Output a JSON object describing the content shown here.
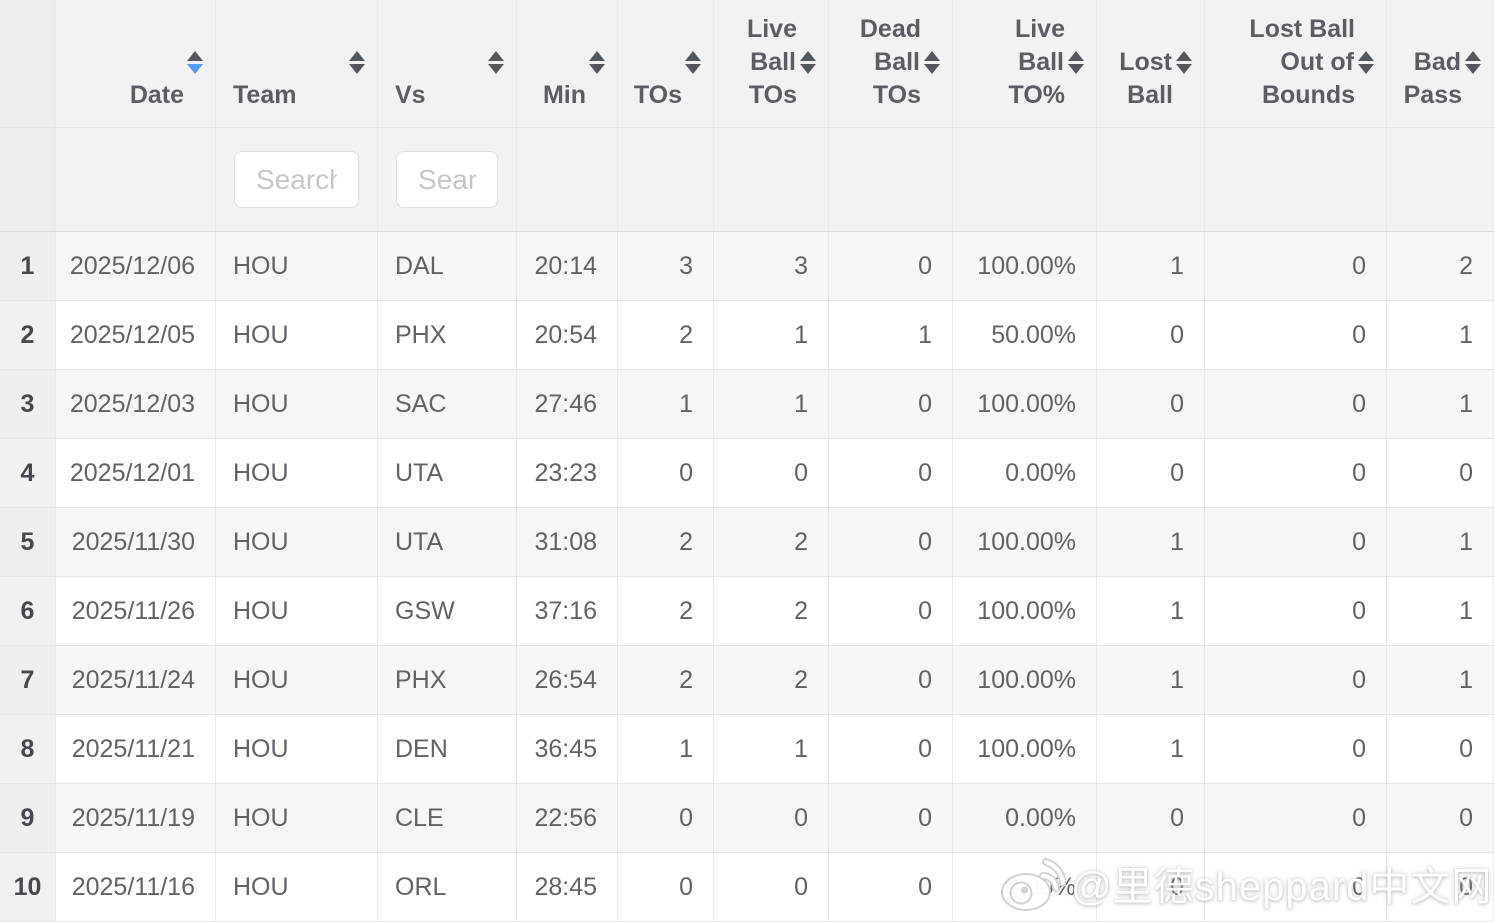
{
  "colors": {
    "sort_inactive": "#53575e",
    "sort_active": "#579af0",
    "header_text": "#5a5e64",
    "cell_text": "#5f6368",
    "row_number_text": "#45494f"
  },
  "table": {
    "columns": [
      {
        "key": "index",
        "label": "",
        "type": "row-number"
      },
      {
        "key": "date",
        "lines": [
          "Date"
        ],
        "align": "right",
        "sortable": true,
        "sorted": "desc"
      },
      {
        "key": "team",
        "lines": [
          "Team"
        ],
        "align": "left",
        "sortable": true,
        "filter_placeholder": "Search"
      },
      {
        "key": "vs",
        "lines": [
          "Vs"
        ],
        "align": "left",
        "sortable": true,
        "filter_placeholder": "Search"
      },
      {
        "key": "min",
        "lines": [
          "Min"
        ],
        "align": "right",
        "sortable": true
      },
      {
        "key": "tos",
        "lines": [
          "TOs"
        ],
        "align": "right",
        "sortable": true
      },
      {
        "key": "live_ball_tos",
        "lines": [
          "Live",
          "Ball",
          "TOs"
        ],
        "icon_line": 1,
        "align": "right",
        "sortable": true
      },
      {
        "key": "dead_ball_tos",
        "lines": [
          "Dead",
          "Ball",
          "TOs"
        ],
        "icon_line": 1,
        "align": "right",
        "sortable": true
      },
      {
        "key": "live_ball_to_pct",
        "lines": [
          "Live",
          "Ball",
          "TO%"
        ],
        "icon_line": 1,
        "align": "right",
        "sortable": true
      },
      {
        "key": "lost_ball",
        "lines": [
          "Lost",
          "Ball"
        ],
        "icon_line": 0,
        "align": "right",
        "sortable": true
      },
      {
        "key": "lost_ball_out_of_bounds",
        "lines": [
          "Lost Ball",
          "Out of",
          "Bounds"
        ],
        "icon_line": 1,
        "align": "right",
        "sortable": true
      },
      {
        "key": "bad_pass",
        "lines": [
          "Bad",
          "Pass"
        ],
        "icon_line": 0,
        "align": "right",
        "sortable": true
      }
    ],
    "rows": [
      {
        "index": "1",
        "date": "2025/12/06",
        "team": "HOU",
        "vs": "DAL",
        "min": "20:14",
        "tos": "3",
        "live_ball_tos": "3",
        "dead_ball_tos": "0",
        "live_ball_to_pct": "100.00%",
        "lost_ball": "1",
        "lost_ball_out_of_bounds": "0",
        "bad_pass": "2"
      },
      {
        "index": "2",
        "date": "2025/12/05",
        "team": "HOU",
        "vs": "PHX",
        "min": "20:54",
        "tos": "2",
        "live_ball_tos": "1",
        "dead_ball_tos": "1",
        "live_ball_to_pct": "50.00%",
        "lost_ball": "0",
        "lost_ball_out_of_bounds": "0",
        "bad_pass": "1"
      },
      {
        "index": "3",
        "date": "2025/12/03",
        "team": "HOU",
        "vs": "SAC",
        "min": "27:46",
        "tos": "1",
        "live_ball_tos": "1",
        "dead_ball_tos": "0",
        "live_ball_to_pct": "100.00%",
        "lost_ball": "0",
        "lost_ball_out_of_bounds": "0",
        "bad_pass": "1"
      },
      {
        "index": "4",
        "date": "2025/12/01",
        "team": "HOU",
        "vs": "UTA",
        "min": "23:23",
        "tos": "0",
        "live_ball_tos": "0",
        "dead_ball_tos": "0",
        "live_ball_to_pct": "0.00%",
        "lost_ball": "0",
        "lost_ball_out_of_bounds": "0",
        "bad_pass": "0"
      },
      {
        "index": "5",
        "date": "2025/11/30",
        "team": "HOU",
        "vs": "UTA",
        "min": "31:08",
        "tos": "2",
        "live_ball_tos": "2",
        "dead_ball_tos": "0",
        "live_ball_to_pct": "100.00%",
        "lost_ball": "1",
        "lost_ball_out_of_bounds": "0",
        "bad_pass": "1"
      },
      {
        "index": "6",
        "date": "2025/11/26",
        "team": "HOU",
        "vs": "GSW",
        "min": "37:16",
        "tos": "2",
        "live_ball_tos": "2",
        "dead_ball_tos": "0",
        "live_ball_to_pct": "100.00%",
        "lost_ball": "1",
        "lost_ball_out_of_bounds": "0",
        "bad_pass": "1"
      },
      {
        "index": "7",
        "date": "2025/11/24",
        "team": "HOU",
        "vs": "PHX",
        "min": "26:54",
        "tos": "2",
        "live_ball_tos": "2",
        "dead_ball_tos": "0",
        "live_ball_to_pct": "100.00%",
        "lost_ball": "1",
        "lost_ball_out_of_bounds": "0",
        "bad_pass": "1"
      },
      {
        "index": "8",
        "date": "2025/11/21",
        "team": "HOU",
        "vs": "DEN",
        "min": "36:45",
        "tos": "1",
        "live_ball_tos": "1",
        "dead_ball_tos": "0",
        "live_ball_to_pct": "100.00%",
        "lost_ball": "1",
        "lost_ball_out_of_bounds": "0",
        "bad_pass": "0"
      },
      {
        "index": "9",
        "date": "2025/11/19",
        "team": "HOU",
        "vs": "CLE",
        "min": "22:56",
        "tos": "0",
        "live_ball_tos": "0",
        "dead_ball_tos": "0",
        "live_ball_to_pct": "0.00%",
        "lost_ball": "0",
        "lost_ball_out_of_bounds": "0",
        "bad_pass": "0"
      },
      {
        "index": "10",
        "date": "2025/11/16",
        "team": "HOU",
        "vs": "ORL",
        "min": "28:45",
        "tos": "0",
        "live_ball_tos": "0",
        "dead_ball_tos": "0",
        "live_ball_to_pct": "0.00%",
        "lost_ball": "0",
        "lost_ball_out_of_bounds": "0",
        "bad_pass": "0"
      }
    ]
  },
  "watermark": {
    "icon": "weibo-icon",
    "text": "@里德sheppard中文网"
  }
}
